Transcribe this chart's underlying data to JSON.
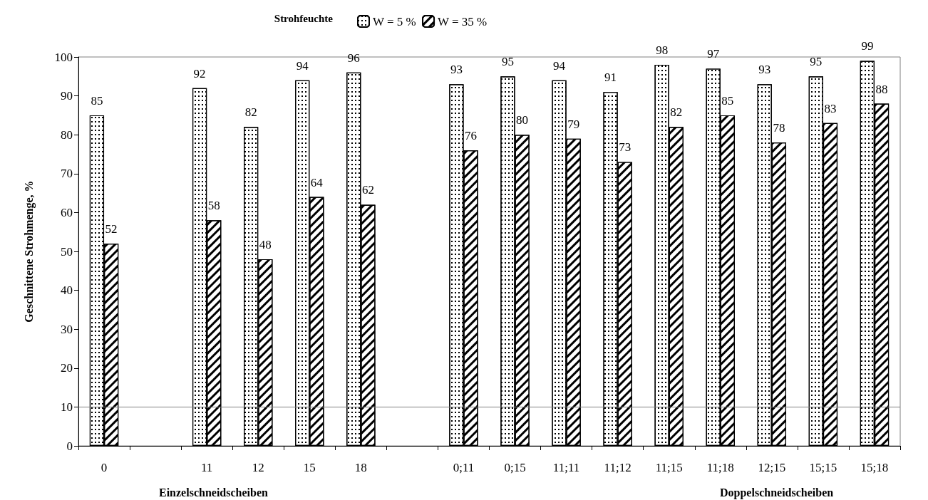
{
  "chart_data": {
    "type": "bar",
    "ylabel": "Geschnittene Strohmenge, %",
    "legend_title": "Strohfeuchte",
    "categories": [
      "0",
      null,
      "11",
      "12",
      "15",
      "18",
      null,
      "0;11",
      "0;15",
      "11;11",
      "11;12",
      "11;15",
      "11;18",
      "12;15",
      "15;15",
      "15;18"
    ],
    "series": [
      {
        "name": "W = 5 %",
        "color": "#ffffff",
        "values": [
          85,
          null,
          92,
          82,
          94,
          96,
          null,
          93,
          95,
          94,
          91,
          98,
          97,
          93,
          95,
          99
        ]
      },
      {
        "name": "W = 35 %",
        "color": "#ffffff",
        "values": [
          52,
          null,
          58,
          48,
          64,
          62,
          null,
          76,
          80,
          79,
          73,
          82,
          85,
          78,
          83,
          88
        ]
      }
    ],
    "ylim": [
      0,
      100
    ],
    "yticks": [
      0,
      10,
      20,
      30,
      40,
      50,
      60,
      70,
      80,
      90,
      100
    ],
    "ref_lines": [
      {
        "axis": "y",
        "value": 10,
        "color": "#808080"
      }
    ],
    "annotations": [
      "Einzelschneidscheiben",
      "Doppelschneidscheiben"
    ],
    "data_labels": true,
    "grid": false,
    "legend": "top"
  }
}
